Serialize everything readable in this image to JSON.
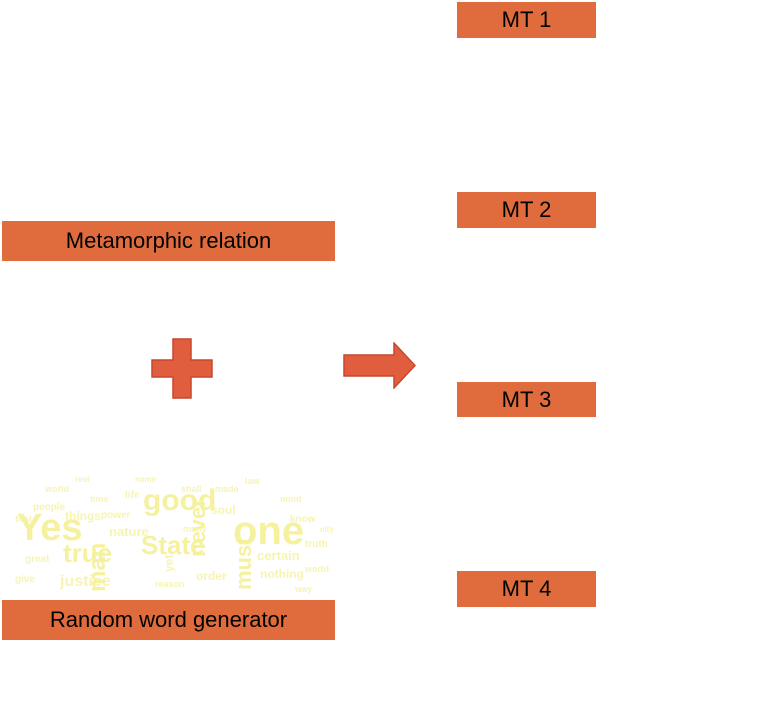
{
  "diagram": {
    "input_relation_label": "Metamorphic relation",
    "input_generator_label": "Random word generator",
    "outputs": [
      "MT 1",
      "MT 2",
      "MT 3",
      "MT 4"
    ],
    "operator_icon": "plus-icon",
    "flow_icon": "arrow-right-icon",
    "colors": {
      "box_fill": "#e06c3d",
      "icon_fill": "#e05d3e",
      "wordcloud_text": "#f5f19a"
    }
  },
  "wordcloud": {
    "words": [
      "Yes",
      "good",
      "one",
      "State",
      "true",
      "man",
      "must",
      "never",
      "yet",
      "justice",
      "nature",
      "soul",
      "things",
      "certain",
      "nothing",
      "order",
      "life",
      "people",
      "know",
      "give",
      "way",
      "power",
      "mind",
      "shall",
      "great",
      "truth",
      "many",
      "world",
      "made",
      "time",
      "reason",
      "world",
      "first",
      "law",
      "rest",
      "name",
      "city"
    ]
  }
}
